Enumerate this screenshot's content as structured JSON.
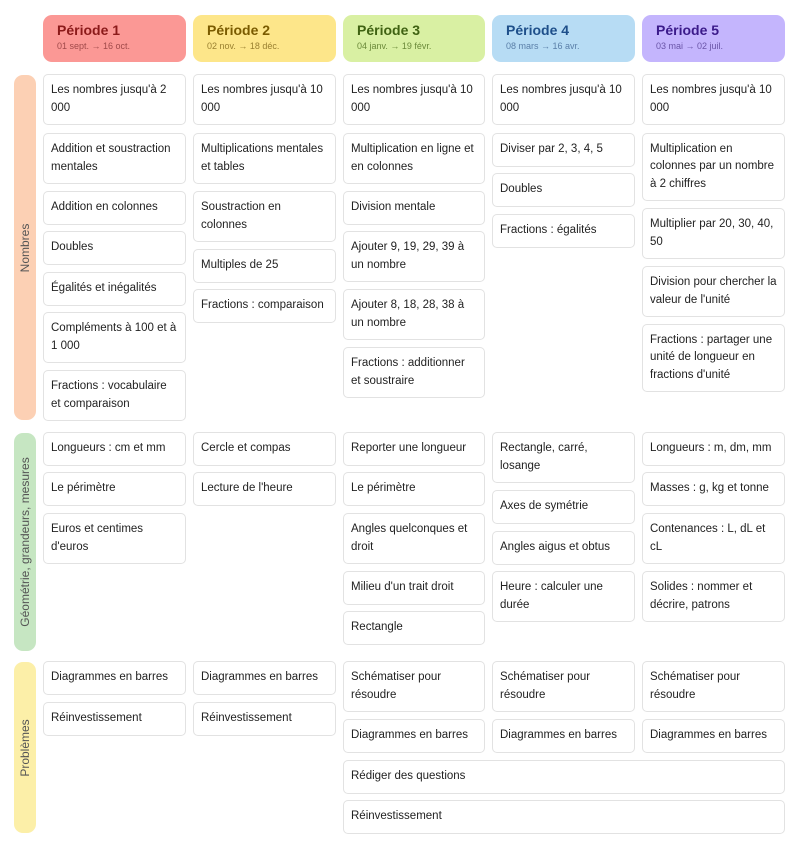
{
  "periods": [
    {
      "title": "Période 1",
      "dates": "01 sept. → 16 oct.",
      "bg": "#fb9895",
      "title_color": "#8b1a1a",
      "date_color": "#a04a4a"
    },
    {
      "title": "Période 2",
      "dates": "02 nov. → 18 déc.",
      "bg": "#fde68a",
      "title_color": "#7a5b00",
      "date_color": "#9a8030"
    },
    {
      "title": "Période 3",
      "dates": "04 janv. → 19 févr.",
      "bg": "#d9f0a3",
      "title_color": "#3f6212",
      "date_color": "#6b8a3a"
    },
    {
      "title": "Période 4",
      "dates": "08 mars → 16 avr.",
      "bg": "#b7dcf4",
      "title_color": "#1e4f8a",
      "date_color": "#5a7fa8"
    },
    {
      "title": "Période 5",
      "dates": "03 mai → 02 juil.",
      "bg": "#c4b5fd",
      "title_color": "#3b1a8a",
      "date_color": "#6a55a8"
    }
  ],
  "domains": [
    {
      "label": "Nombres",
      "color": "#fcd0b4"
    },
    {
      "label": "Géométrie, grandeurs, mesures",
      "color": "#c6e6c2"
    },
    {
      "label": "Problèmes",
      "color": "#fcefa8"
    }
  ],
  "cells": {
    "nombres": [
      [
        "Les nombres jusqu'à 2 000",
        "Addition et soustraction mentales",
        "Addition en colonnes",
        "Doubles",
        "Égalités et inégalités",
        "Compléments à 100 et à 1 000",
        "Fractions : vocabulaire et comparaison"
      ],
      [
        "Les nombres jusqu'à 10 000",
        "Multiplications mentales et tables",
        "Soustraction en colonnes",
        "Multiples de 25",
        "Fractions : comparaison"
      ],
      [
        "Les nombres jusqu'à 10 000",
        "Multiplication en ligne et en colonnes",
        "Division mentale",
        "Ajouter 9, 19, 29, 39 à un nombre",
        "Ajouter 8, 18, 28, 38 à un nombre",
        "Fractions : additionner et soustraire"
      ],
      [
        "Les nombres jusqu'à 10 000",
        "Diviser par 2, 3, 4, 5",
        "Doubles",
        "Fractions : égalités"
      ],
      [
        "Les nombres jusqu'à 10 000",
        "Multiplication en colonnes par un nombre à 2 chiffres",
        "Multiplier par 20, 30, 40, 50",
        "Division pour chercher la valeur de l'unité",
        "Fractions : partager une unité de longueur en fractions d'unité"
      ]
    ],
    "geometrie": [
      [
        "Longueurs : cm et mm",
        "Le périmètre",
        "Euros et centimes d'euros"
      ],
      [
        "Cercle et compas",
        "Lecture de l'heure"
      ],
      [
        "Reporter une longueur",
        "Le périmètre",
        "Angles quelconques et droit",
        "Milieu d'un trait droit",
        "Rectangle"
      ],
      [
        "Rectangle, carré, losange",
        "Axes de symétrie",
        "Angles aigus et obtus",
        "Heure : calculer une durée"
      ],
      [
        "Longueurs : m, dm, mm",
        "Masses : g, kg et tonne",
        "Contenances : L, dL et cL",
        "Solides : nommer et décrire, patrons"
      ]
    ],
    "problemes": [
      [
        "Diagrammes en barres",
        "Réinvestissement"
      ],
      [
        "Diagrammes en barres",
        "Réinvestissement"
      ],
      [
        "Schématiser pour résoudre",
        "Diagrammes en barres"
      ],
      [
        "Schématiser pour résoudre",
        "Diagrammes en barres"
      ],
      [
        "Schématiser pour résoudre",
        "Diagrammes en barres"
      ]
    ],
    "problemes_wide": [
      "Rédiger des questions",
      "Réinvestissement"
    ]
  }
}
